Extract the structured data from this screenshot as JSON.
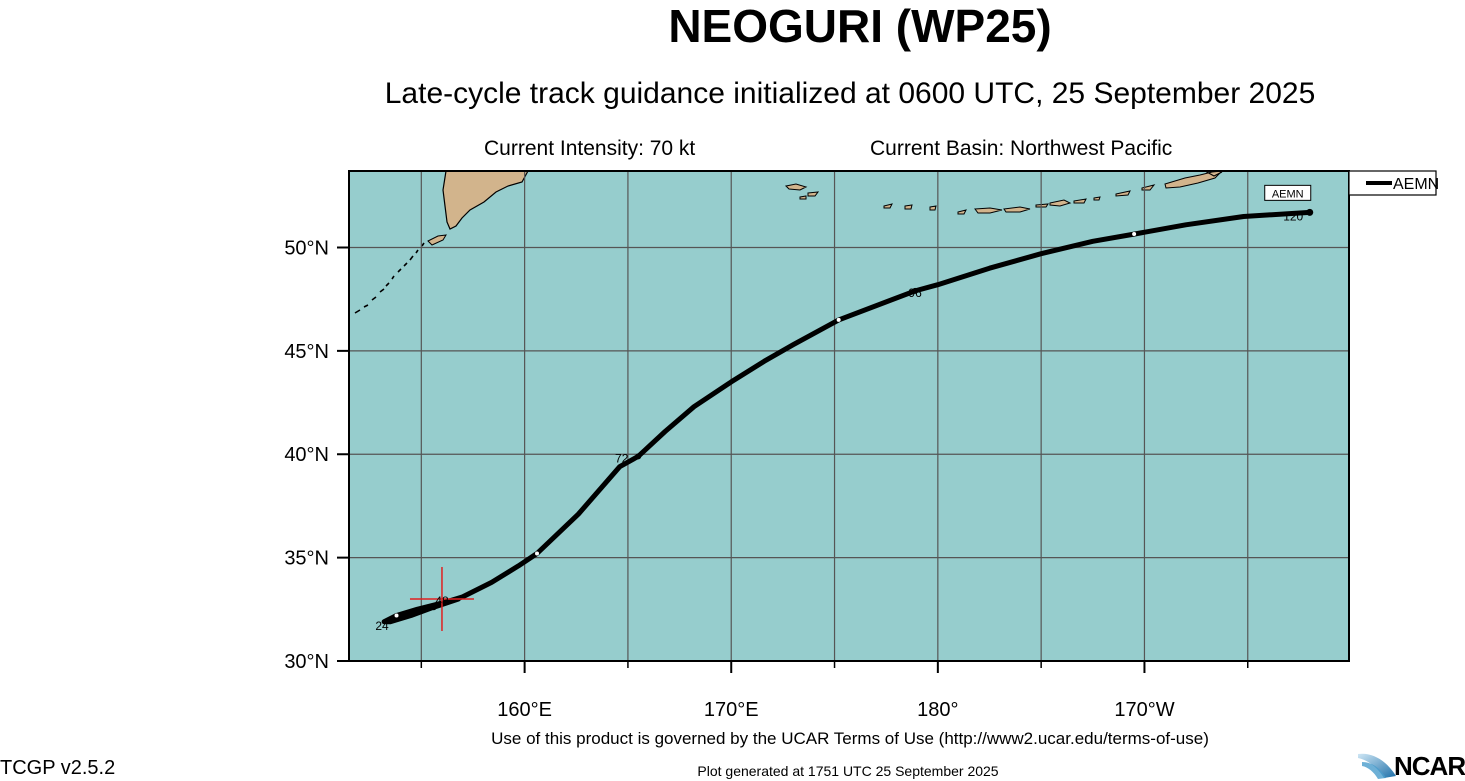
{
  "header": {
    "title": "NEOGURI (WP25)",
    "subtitle": "Late-cycle track guidance initialized at 0600 UTC, 25 September 2025",
    "current_intensity": "Current Intensity: 70 kt",
    "current_basin": "Current Basin: Northwest Pacific"
  },
  "map": {
    "lon_range_deg_east": [
      151.5,
      199.9
    ],
    "lat_range": [
      30,
      53.7
    ],
    "lat_ticks": [
      {
        "value": 30,
        "label": "30°N"
      },
      {
        "value": 35,
        "label": "35°N"
      },
      {
        "value": 40,
        "label": "40°N"
      },
      {
        "value": 45,
        "label": "45°N"
      },
      {
        "value": 50,
        "label": "50°N"
      }
    ],
    "lon_ticks": [
      {
        "value": 160,
        "label": "160°E"
      },
      {
        "value": 170,
        "label": "170°E"
      },
      {
        "value": 180,
        "label": "180°"
      },
      {
        "value": 190,
        "label": "170°W"
      }
    ],
    "grid_lon": [
      155,
      160,
      165,
      170,
      175,
      180,
      185,
      190,
      195
    ],
    "grid_lat": [
      35,
      40,
      45,
      50
    ],
    "ocean_color": "#96cdcd",
    "land_color": "#d2b48c",
    "current_position": {
      "lon": 156.0,
      "lat": 33.0
    }
  },
  "legend": {
    "items": [
      {
        "name": "AEMN",
        "color": "#000000"
      }
    ]
  },
  "track": {
    "model": "AEMN",
    "box_label": "AEMN",
    "points": [
      [
        156.8,
        33.0
      ],
      [
        155.6,
        32.6
      ],
      [
        154.5,
        32.2
      ],
      [
        153.5,
        31.9
      ],
      [
        153.2,
        31.9
      ],
      [
        153.8,
        32.2
      ],
      [
        154.8,
        32.5
      ],
      [
        156.0,
        32.8
      ],
      [
        157.0,
        33.1
      ],
      [
        158.4,
        33.8
      ],
      [
        159.7,
        34.6
      ],
      [
        160.6,
        35.2
      ],
      [
        162.6,
        37.1
      ],
      [
        164.6,
        39.4
      ],
      [
        165.5,
        39.9
      ],
      [
        166.8,
        41.1
      ],
      [
        168.2,
        42.3
      ],
      [
        170.0,
        43.5
      ],
      [
        171.6,
        44.5
      ],
      [
        173.0,
        45.3
      ],
      [
        175.2,
        46.5
      ],
      [
        178.9,
        47.9
      ],
      [
        180.0,
        48.2
      ],
      [
        182.5,
        49.0
      ],
      [
        185.0,
        49.7
      ],
      [
        187.5,
        50.3
      ],
      [
        189.5,
        50.65
      ],
      [
        192.0,
        51.1
      ],
      [
        194.8,
        51.5
      ],
      [
        198.0,
        51.7
      ]
    ],
    "tau_labels": [
      {
        "text": "24",
        "lon": 153.1,
        "lat": 31.5
      },
      {
        "text": "48",
        "lon": 156.0,
        "lat": 32.7
      },
      {
        "text": "72",
        "lon": 164.7,
        "lat": 39.6
      },
      {
        "text": "96",
        "lon": 178.9,
        "lat": 47.6
      },
      {
        "text": "120",
        "lon": 197.2,
        "lat": 51.3
      }
    ]
  },
  "footer": {
    "terms": "Use of this product is governed by the UCAR Terms of Use (http://www2.ucar.edu/terms-of-use)",
    "version": "TCGP v2.5.2",
    "generated": "Plot generated at 1751 UTC   25 September 2025",
    "logo_text": "NCAR"
  }
}
